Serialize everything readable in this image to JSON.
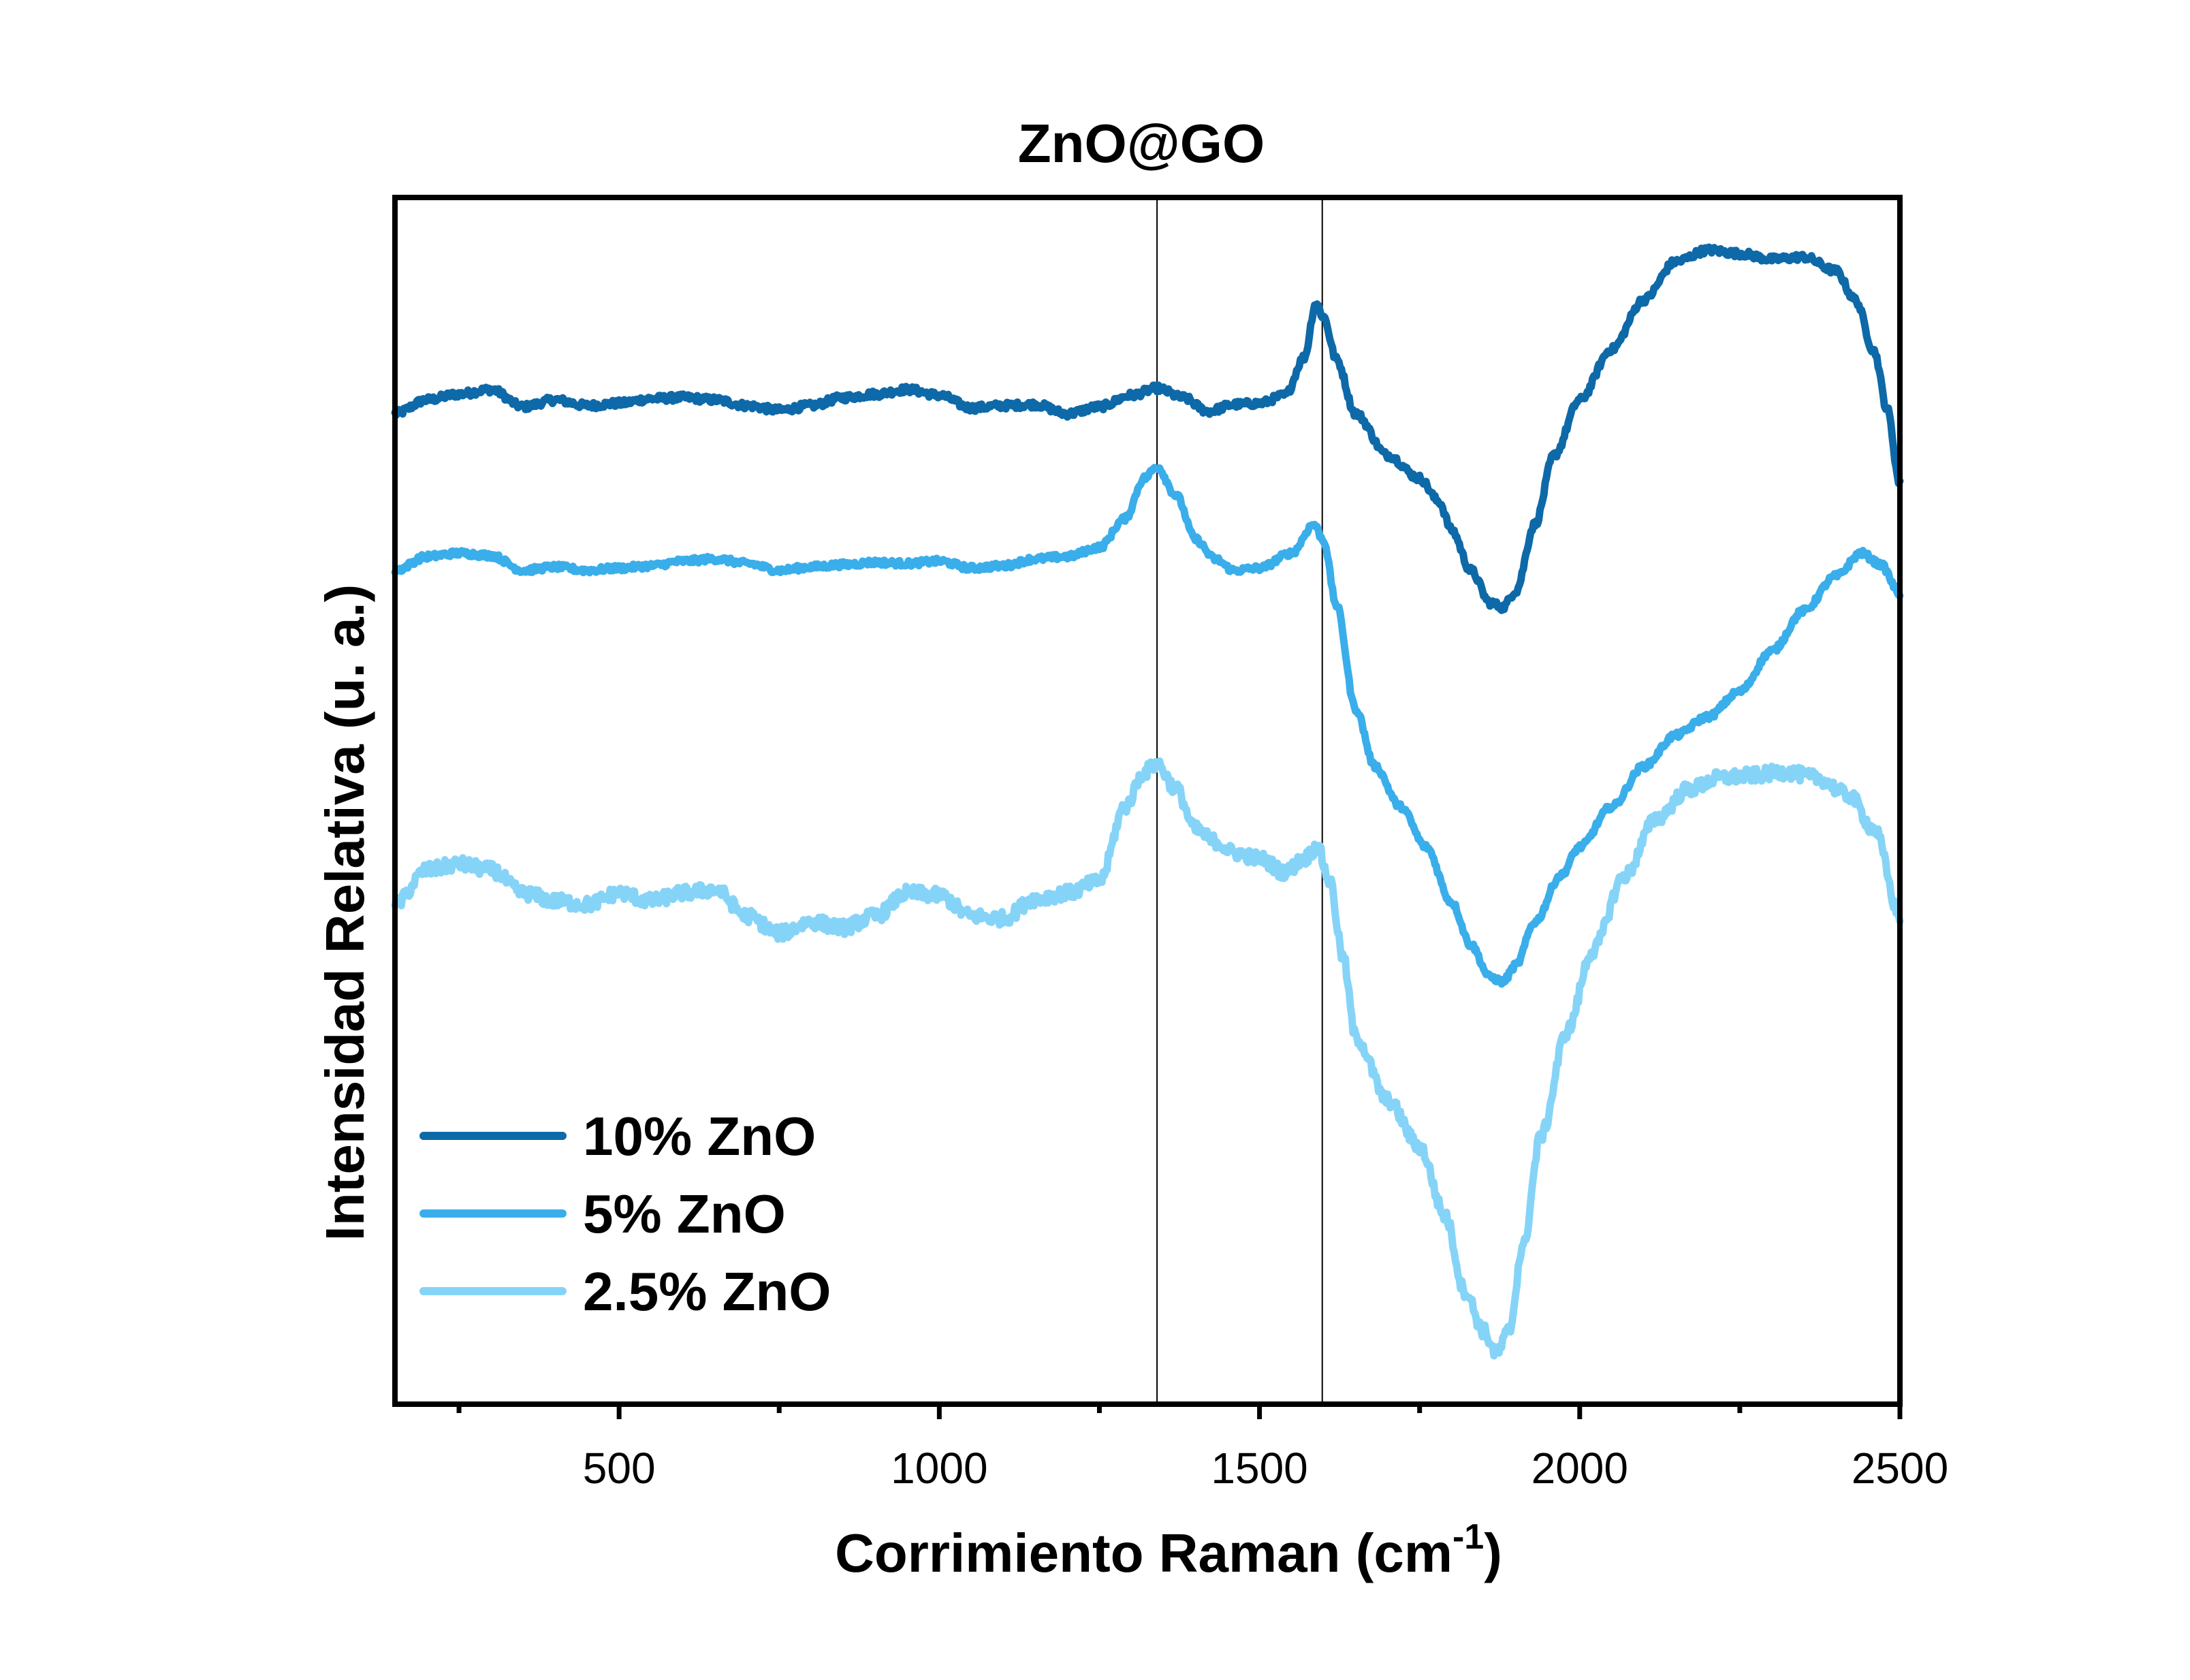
{
  "chart_data": {
    "type": "line",
    "title": "ZnO@GO",
    "xlabel": {
      "main": "Corrimiento Raman (cm",
      "sup": "-1",
      "close": ")"
    },
    "ylabel": "Intensidad Relativa (u. a.)",
    "xlim": [
      150,
      2500
    ],
    "x_ticks": [
      500,
      1000,
      1500,
      2000,
      2500
    ],
    "x_tick_labels": [
      "500",
      "1000",
      "1500",
      "2000",
      "2500"
    ],
    "x_minor_ticks": [
      250,
      750,
      1250,
      1750,
      2250
    ],
    "y_ticks_shown": false,
    "y_range_relative": [
      0,
      1
    ],
    "reference_lines_x": [
      1340,
      1598
    ],
    "legend_position": "bottom-left",
    "series": [
      {
        "name": "10% ZnO",
        "color": "#0e69a8",
        "points": [
          [
            150,
            0.836
          ],
          [
            200,
            0.848
          ],
          [
            250,
            0.853
          ],
          [
            300,
            0.857
          ],
          [
            350,
            0.842
          ],
          [
            400,
            0.848
          ],
          [
            450,
            0.843
          ],
          [
            500,
            0.845
          ],
          [
            550,
            0.849
          ],
          [
            600,
            0.85
          ],
          [
            650,
            0.848
          ],
          [
            700,
            0.843
          ],
          [
            750,
            0.839
          ],
          [
            800,
            0.843
          ],
          [
            850,
            0.85
          ],
          [
            900,
            0.853
          ],
          [
            950,
            0.857
          ],
          [
            1000,
            0.852
          ],
          [
            1050,
            0.841
          ],
          [
            1100,
            0.843
          ],
          [
            1150,
            0.844
          ],
          [
            1200,
            0.836
          ],
          [
            1250,
            0.842
          ],
          [
            1300,
            0.852
          ],
          [
            1340,
            0.858
          ],
          [
            1380,
            0.85
          ],
          [
            1420,
            0.838
          ],
          [
            1460,
            0.844
          ],
          [
            1500,
            0.845
          ],
          [
            1540,
            0.852
          ],
          [
            1570,
            0.885
          ],
          [
            1588,
            0.932
          ],
          [
            1600,
            0.92
          ],
          [
            1620,
            0.883
          ],
          [
            1650,
            0.836
          ],
          [
            1700,
            0.8
          ],
          [
            1750,
            0.78
          ],
          [
            1780,
            0.76
          ],
          [
            1800,
            0.735
          ],
          [
            1830,
            0.7
          ],
          [
            1860,
            0.672
          ],
          [
            1880,
            0.668
          ],
          [
            1900,
            0.682
          ],
          [
            1930,
            0.74
          ],
          [
            1960,
            0.8
          ],
          [
            2000,
            0.848
          ],
          [
            2050,
            0.892
          ],
          [
            2100,
            0.935
          ],
          [
            2150,
            0.968
          ],
          [
            2200,
            0.978
          ],
          [
            2250,
            0.975
          ],
          [
            2300,
            0.97
          ],
          [
            2350,
            0.972
          ],
          [
            2400,
            0.96
          ],
          [
            2430,
            0.935
          ],
          [
            2460,
            0.89
          ],
          [
            2480,
            0.84
          ],
          [
            2500,
            0.775
          ]
        ]
      },
      {
        "name": "5% ZnO",
        "color": "#3aaeea",
        "points": [
          [
            150,
            0.7
          ],
          [
            200,
            0.712
          ],
          [
            250,
            0.715
          ],
          [
            300,
            0.713
          ],
          [
            350,
            0.7
          ],
          [
            400,
            0.703
          ],
          [
            450,
            0.7
          ],
          [
            500,
            0.702
          ],
          [
            550,
            0.704
          ],
          [
            600,
            0.708
          ],
          [
            650,
            0.71
          ],
          [
            700,
            0.706
          ],
          [
            750,
            0.7
          ],
          [
            800,
            0.703
          ],
          [
            850,
            0.705
          ],
          [
            900,
            0.707
          ],
          [
            950,
            0.706
          ],
          [
            1000,
            0.708
          ],
          [
            1050,
            0.702
          ],
          [
            1100,
            0.704
          ],
          [
            1150,
            0.71
          ],
          [
            1200,
            0.712
          ],
          [
            1250,
            0.72
          ],
          [
            1290,
            0.745
          ],
          [
            1320,
            0.78
          ],
          [
            1340,
            0.79
          ],
          [
            1370,
            0.765
          ],
          [
            1400,
            0.727
          ],
          [
            1430,
            0.71
          ],
          [
            1460,
            0.7
          ],
          [
            1500,
            0.702
          ],
          [
            1550,
            0.715
          ],
          [
            1585,
            0.74
          ],
          [
            1600,
            0.726
          ],
          [
            1620,
            0.67
          ],
          [
            1650,
            0.58
          ],
          [
            1680,
            0.53
          ],
          [
            1720,
            0.495
          ],
          [
            1760,
            0.46
          ],
          [
            1800,
            0.412
          ],
          [
            1830,
            0.375
          ],
          [
            1860,
            0.347
          ],
          [
            1880,
            0.343
          ],
          [
            1900,
            0.357
          ],
          [
            1930,
            0.395
          ],
          [
            1970,
            0.435
          ],
          [
            2000,
            0.46
          ],
          [
            2050,
            0.495
          ],
          [
            2100,
            0.53
          ],
          [
            2150,
            0.557
          ],
          [
            2200,
            0.573
          ],
          [
            2250,
            0.595
          ],
          [
            2300,
            0.63
          ],
          [
            2350,
            0.665
          ],
          [
            2400,
            0.695
          ],
          [
            2440,
            0.715
          ],
          [
            2470,
            0.705
          ],
          [
            2500,
            0.68
          ]
        ]
      },
      {
        "name": "2.5% ZnO",
        "color": "#85d4f7",
        "points": [
          [
            150,
            0.41
          ],
          [
            200,
            0.44
          ],
          [
            250,
            0.445
          ],
          [
            300,
            0.44
          ],
          [
            350,
            0.42
          ],
          [
            400,
            0.413
          ],
          [
            450,
            0.41
          ],
          [
            500,
            0.42
          ],
          [
            550,
            0.413
          ],
          [
            600,
            0.42
          ],
          [
            650,
            0.423
          ],
          [
            700,
            0.4
          ],
          [
            750,
            0.385
          ],
          [
            800,
            0.395
          ],
          [
            850,
            0.39
          ],
          [
            900,
            0.4
          ],
          [
            950,
            0.42
          ],
          [
            1000,
            0.418
          ],
          [
            1050,
            0.4
          ],
          [
            1100,
            0.398
          ],
          [
            1150,
            0.415
          ],
          [
            1200,
            0.42
          ],
          [
            1250,
            0.43
          ],
          [
            1290,
            0.495
          ],
          [
            1320,
            0.525
          ],
          [
            1340,
            0.532
          ],
          [
            1370,
            0.51
          ],
          [
            1400,
            0.475
          ],
          [
            1430,
            0.465
          ],
          [
            1460,
            0.455
          ],
          [
            1500,
            0.45
          ],
          [
            1540,
            0.438
          ],
          [
            1570,
            0.45
          ],
          [
            1590,
            0.46
          ],
          [
            1610,
            0.43
          ],
          [
            1630,
            0.365
          ],
          [
            1650,
            0.295
          ],
          [
            1700,
            0.24
          ],
          [
            1750,
            0.2
          ],
          [
            1790,
            0.14
          ],
          [
            1820,
            0.075
          ],
          [
            1850,
            0.04
          ],
          [
            1870,
            0.02
          ],
          [
            1890,
            0.04
          ],
          [
            1910,
            0.11
          ],
          [
            1940,
            0.21
          ],
          [
            1980,
            0.3
          ],
          [
            2020,
            0.37
          ],
          [
            2070,
            0.435
          ],
          [
            2120,
            0.485
          ],
          [
            2170,
            0.51
          ],
          [
            2220,
            0.52
          ],
          [
            2270,
            0.522
          ],
          [
            2320,
            0.525
          ],
          [
            2370,
            0.52
          ],
          [
            2420,
            0.505
          ],
          [
            2460,
            0.475
          ],
          [
            2500,
            0.4
          ]
        ]
      }
    ]
  }
}
